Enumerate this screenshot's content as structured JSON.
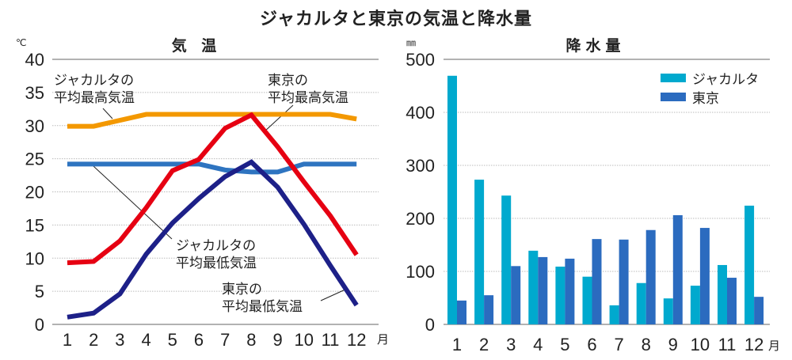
{
  "title": "ジャカルタと東京の気温と降水量",
  "chart_data": [
    {
      "type": "line",
      "title": "気 温",
      "ylabel": "℃",
      "xlabel": "月",
      "ylim": [
        0,
        40
      ],
      "yticks": [
        0,
        5,
        10,
        15,
        20,
        25,
        30,
        35,
        40
      ],
      "categories": [
        "1",
        "2",
        "3",
        "4",
        "5",
        "6",
        "7",
        "8",
        "9",
        "10",
        "11",
        "12"
      ],
      "grid": true,
      "series": [
        {
          "name": "ジャカルタの平均最高気温",
          "color": "#F39800",
          "values": [
            29.9,
            29.9,
            30.8,
            31.7,
            31.7,
            31.7,
            31.7,
            31.7,
            31.7,
            31.7,
            31.7,
            31.0
          ]
        },
        {
          "name": "ジャカルタの平均最低気温",
          "color": "#2E74C0",
          "values": [
            24.2,
            24.2,
            24.2,
            24.2,
            24.2,
            24.2,
            23.3,
            23.0,
            23.0,
            24.2,
            24.2,
            24.2
          ]
        },
        {
          "name": "東京の平均最高気温",
          "color": "#E60012",
          "values": [
            9.3,
            9.5,
            12.6,
            17.6,
            23.2,
            24.9,
            29.6,
            31.6,
            26.8,
            21.5,
            16.4,
            10.5
          ]
        },
        {
          "name": "東京の平均最低気温",
          "color": "#1D2088",
          "values": [
            1.1,
            1.7,
            4.6,
            10.6,
            15.3,
            19.0,
            22.3,
            24.5,
            20.7,
            15.1,
            8.9,
            2.9
          ]
        }
      ],
      "annotations": [
        {
          "line1": "ジャカルタの",
          "line2": "平均最高気温"
        },
        {
          "line1": "東京の",
          "line2": "平均最高気温"
        },
        {
          "line1": "ジャカルタの",
          "line2": "平均最低気温"
        },
        {
          "line1": "東京の",
          "line2": "平均最低気温"
        }
      ]
    },
    {
      "type": "bar",
      "title": "降水量",
      "ylabel": "㎜",
      "xlabel": "月",
      "ylim": [
        0,
        500
      ],
      "yticks": [
        0,
        100,
        200,
        300,
        400,
        500
      ],
      "categories": [
        "1",
        "2",
        "3",
        "4",
        "5",
        "6",
        "7",
        "8",
        "9",
        "10",
        "11",
        "12"
      ],
      "grid": true,
      "legend": "top-right",
      "series": [
        {
          "name": "ジャカルタ",
          "color": "#00A9CE",
          "values": [
            469,
            273,
            243,
            139,
            109,
            90,
            36,
            78,
            49,
            73,
            112,
            224
          ]
        },
        {
          "name": "東京",
          "color": "#2B6BBF",
          "values": [
            45,
            55,
            110,
            127,
            124,
            161,
            160,
            178,
            206,
            182,
            88,
            52
          ]
        }
      ]
    }
  ]
}
